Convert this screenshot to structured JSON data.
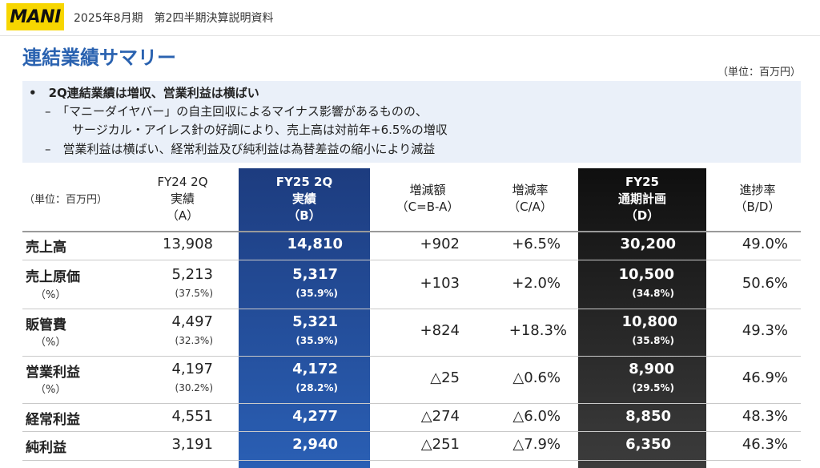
{
  "header": {
    "logo": "MANI",
    "subtitle": "2025年8月期　第2四半期決算説明資料"
  },
  "title": "連結業績サマリー",
  "unit_top": "（単位：百万円）",
  "summary": {
    "line1": "•　2Q連結業績は増収、営業利益は横ばい",
    "line2": "–　「マニーダイヤバー」の自主回収によるマイナス影響があるものの、",
    "line3": "サージカル・アイレス針の好調により、売上高は対前年+6.5%の増収",
    "line4": "–　営業利益は横ばい、経常利益及び純利益は為替差益の縮小により減益"
  },
  "table": {
    "unit_label": "（単位：百万円）",
    "columns": [
      [
        "FY24 2Q",
        "実績",
        "（A）"
      ],
      [
        "FY25 2Q",
        "実績",
        "（B）"
      ],
      [
        "増減額",
        "（C=B-A）"
      ],
      [
        "増減率",
        "（C/A）"
      ],
      [
        "FY25",
        "通期計画",
        "（D）"
      ],
      [
        "進捗率",
        "（B/D）"
      ]
    ],
    "rows": [
      {
        "label": "売上高",
        "a": "13,908",
        "b": "14,810",
        "c": "+902",
        "ca": "+6.5%",
        "d": "30,200",
        "bd": "49.0%"
      },
      {
        "label": "売上原価",
        "sub": "（%）",
        "a": "5,213",
        "a_pct": "(37.5%)",
        "b": "5,317",
        "b_pct": "(35.9%)",
        "c": "+103",
        "ca": "+2.0%",
        "d": "10,500",
        "d_pct": "(34.8%)",
        "bd": "50.6%"
      },
      {
        "label": "販管費",
        "sub": "（%）",
        "a": "4,497",
        "a_pct": "(32.3%)",
        "b": "5,321",
        "b_pct": "(35.9%)",
        "c": "+824",
        "ca": "+18.3%",
        "d": "10,800",
        "d_pct": "(35.8%)",
        "bd": "49.3%"
      },
      {
        "label": "営業利益",
        "sub": "（%）",
        "a": "4,197",
        "a_pct": "(30.2%)",
        "b": "4,172",
        "b_pct": "(28.2%)",
        "c": "△25",
        "ca": "△0.6%",
        "d": "8,900",
        "d_pct": "(29.5%)",
        "bd": "46.9%"
      },
      {
        "label": "経常利益",
        "a": "4,551",
        "b": "4,277",
        "c": "△274",
        "ca": "△6.0%",
        "d": "8,850",
        "bd": "48.3%"
      },
      {
        "label": "純利益",
        "a": "3,191",
        "b": "2,940",
        "c": "△251",
        "ca": "△7.9%",
        "d": "6,350",
        "bd": "46.3%"
      }
    ]
  }
}
